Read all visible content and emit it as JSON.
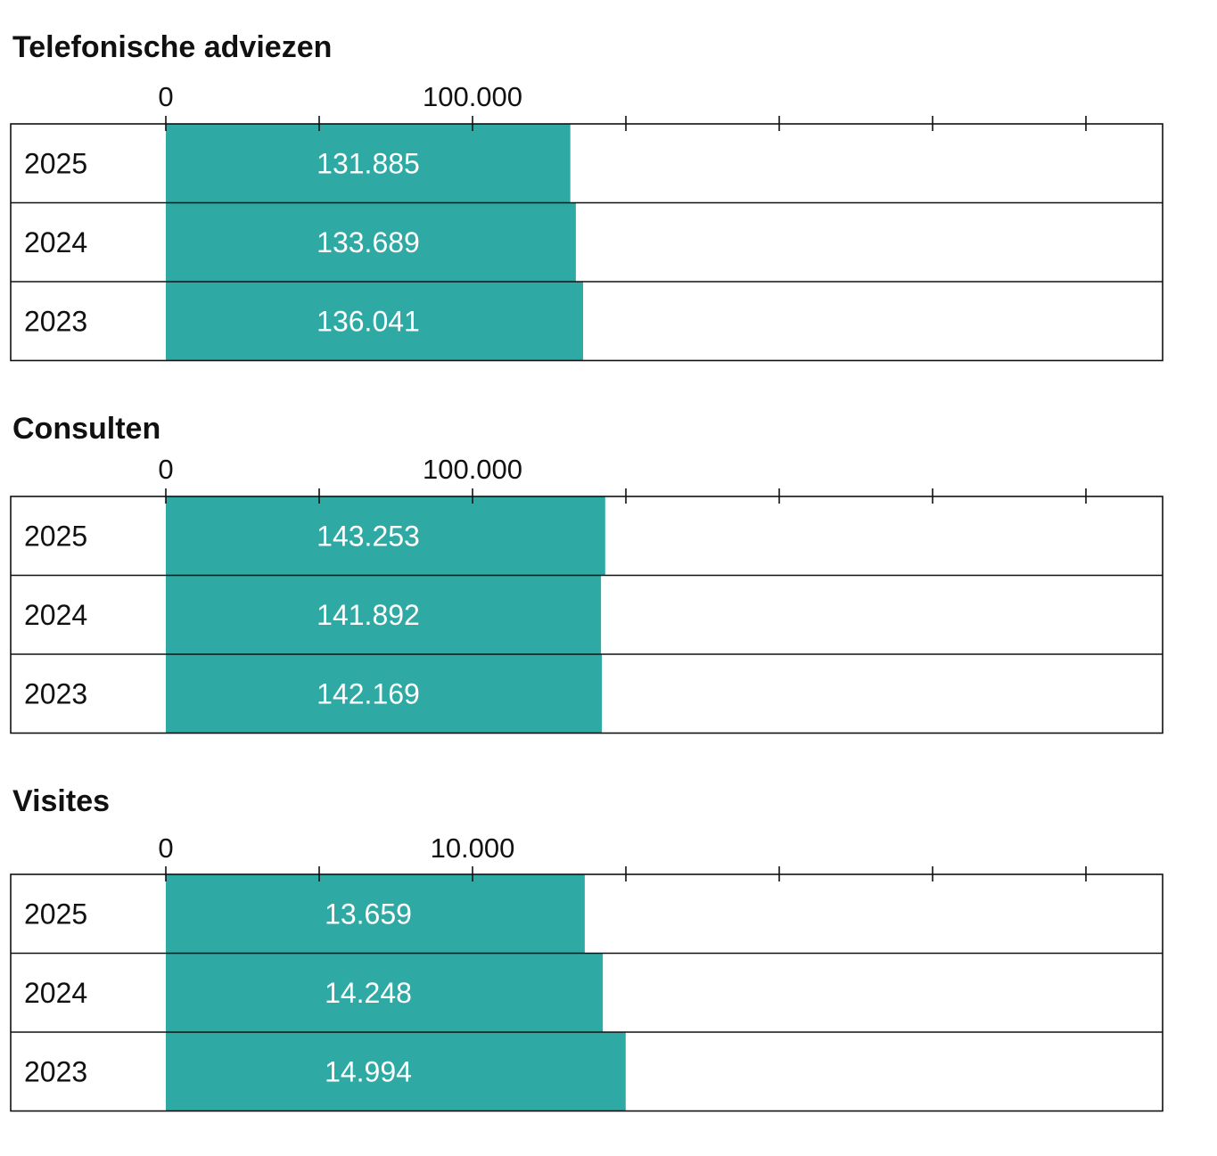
{
  "colors": {
    "bar": "#2ea9a4",
    "frame": "#111111",
    "background": "#ffffff"
  },
  "chart_data": [
    {
      "type": "bar",
      "orientation": "horizontal",
      "title": "Telefonische adviezen",
      "categories": [
        "2025",
        "2024",
        "2023"
      ],
      "values": [
        131885,
        133689,
        136041
      ],
      "value_labels": [
        "131.885",
        "133.689",
        "136.041"
      ],
      "xlim": [
        0,
        325000
      ],
      "x_tick_step": 50000,
      "x_tick_labels": [
        {
          "value": 0,
          "label": "0"
        },
        {
          "value": 100000,
          "label": "100.000"
        }
      ],
      "grid": false,
      "legend": "none"
    },
    {
      "type": "bar",
      "orientation": "horizontal",
      "title": "Consulten",
      "categories": [
        "2025",
        "2024",
        "2023"
      ],
      "values": [
        143253,
        141892,
        142169
      ],
      "value_labels": [
        "143.253",
        "141.892",
        "142.169"
      ],
      "xlim": [
        0,
        325000
      ],
      "x_tick_step": 50000,
      "x_tick_labels": [
        {
          "value": 0,
          "label": "0"
        },
        {
          "value": 100000,
          "label": "100.000"
        }
      ],
      "grid": false,
      "legend": "none"
    },
    {
      "type": "bar",
      "orientation": "horizontal",
      "title": "Visites",
      "categories": [
        "2025",
        "2024",
        "2023"
      ],
      "values": [
        13659,
        14248,
        14994
      ],
      "value_labels": [
        "13.659",
        "14.248",
        "14.994"
      ],
      "xlim": [
        0,
        32500
      ],
      "x_tick_step": 5000,
      "x_tick_labels": [
        {
          "value": 0,
          "label": "0"
        },
        {
          "value": 10000,
          "label": "10.000"
        }
      ],
      "grid": false,
      "legend": "none"
    }
  ]
}
